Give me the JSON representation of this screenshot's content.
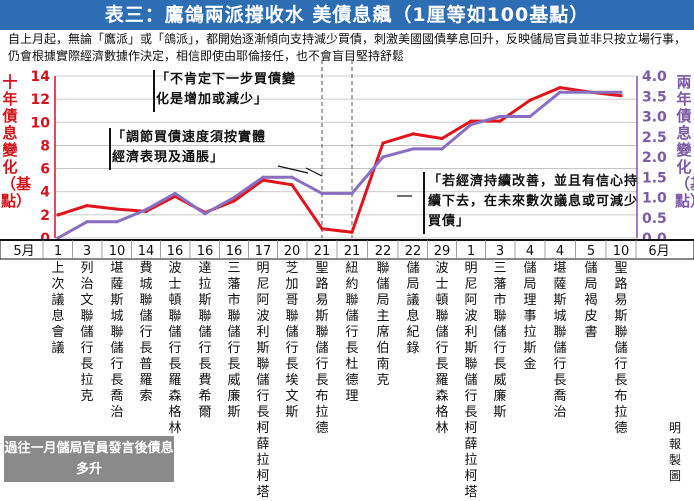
{
  "title": "表三：鷹鴿兩派撐收水 美債息飆（1厘等如100基點）",
  "intro": "自上月起，無論「鷹派」或「鴿派」，都開始逐漸傾向支持減少買債，刺激美國國債孳息回升，反映儲局官員並非只按立場行事，仍會根據實際經濟數據作決定，相信即使由耶倫接任，也不會盲目堅持舒鬆",
  "footer_box": "過往一月儲局官員發言後債息多升",
  "credit": "明報製圖",
  "colors": {
    "title_bg": "#2c6db4",
    "red_series": "#e0141c",
    "purple_series": "#8a6fc0",
    "left_axis": "#d4141c",
    "right_axis": "#7b5aa6"
  },
  "callouts": [
    {
      "text": "「不肯定下一步買債變化是增加或減少」"
    },
    {
      "text": "「調節買債速度須按實體經濟表現及通脹」"
    },
    {
      "text": "「若經濟持續改善，並且有信心持續下去，在未來數次議息或可減少買債」"
    }
  ],
  "officials": [
    "上次議息會議",
    "列治文聯儲行長拉克",
    "堪薩斯城聯儲行長喬治",
    "費城聯儲行長普羅索",
    "波士頓聯儲行長羅森格林",
    "達拉斯聯儲行長費希爾",
    "三藩市聯儲行長威廉斯",
    "明尼阿波利斯聯儲行長柯薛拉柯塔",
    "芝加哥聯儲行長埃文斯",
    "聖路易斯聯儲行長布拉德",
    "紐約聯儲行長杜德理",
    "聯儲局主席伯南克",
    "儲局議息紀錄",
    "波士頓聯儲行長羅森格林",
    "明尼阿波利斯聯儲行長柯薛拉柯塔",
    "三藩市聯儲行長威廉斯",
    "儲局理事拉斯金",
    "堪薩斯城聯儲行長喬治",
    "儲局褐皮書",
    "聖路易斯聯儲行長布拉德"
  ],
  "chart_data": {
    "type": "line",
    "y_left": {
      "label": "十年債息變化（基點）",
      "lim": [
        0,
        14
      ],
      "ticks": [
        0,
        2,
        4,
        6,
        8,
        10,
        12,
        14
      ]
    },
    "y_right": {
      "label": "兩年債息變化（基點）",
      "lim": [
        0.0,
        4.0
      ],
      "ticks": [
        "0.0",
        "0.5",
        "1.0",
        "1.5",
        "2.0",
        "2.5",
        "3.0",
        "3.5",
        "4.0"
      ]
    },
    "x_labels": [
      {
        "day": "1"
      },
      {
        "day": "3"
      },
      {
        "day": "10"
      },
      {
        "day": "14"
      },
      {
        "day": "16"
      },
      {
        "day": "16"
      },
      {
        "day": "16"
      },
      {
        "day": "17"
      },
      {
        "day": "20"
      },
      {
        "day": "21"
      },
      {
        "day": "21"
      },
      {
        "day": "22"
      },
      {
        "day": "22"
      },
      {
        "day": "29"
      },
      {
        "day": "1"
      },
      {
        "day": "3"
      },
      {
        "day": "4"
      },
      {
        "day": "4"
      },
      {
        "day": "5"
      },
      {
        "day": "10"
      }
    ],
    "month_labels": [
      {
        "text": "5月",
        "after_index": -1
      },
      {
        "text": "6月",
        "after_index": 19
      }
    ],
    "series": [
      {
        "axis": "left",
        "values": [
          2.0,
          2.8,
          2.5,
          2.3,
          3.6,
          2.2,
          3.2,
          5.0,
          4.6,
          0.8,
          0.5,
          8.2,
          9.0,
          8.6,
          10.1,
          10.1,
          11.9,
          13.0,
          12.6,
          12.3
        ]
      },
      {
        "axis": "right",
        "values": [
          0.0,
          0.4,
          0.4,
          0.7,
          1.1,
          0.6,
          1.0,
          1.5,
          1.5,
          1.1,
          1.1,
          2.0,
          2.2,
          2.2,
          2.8,
          3.0,
          3.0,
          3.6,
          3.6,
          3.6
        ]
      }
    ]
  }
}
